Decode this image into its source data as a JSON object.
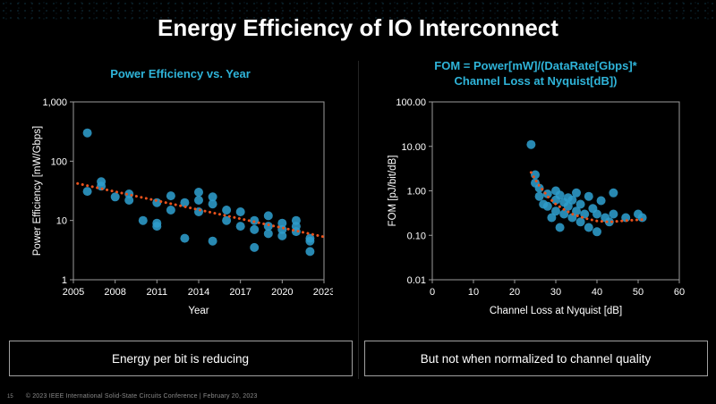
{
  "slide": {
    "title": "Energy Efficiency of IO Interconnect",
    "captions": {
      "left": "Energy per bit is reducing",
      "right": "But not when normalized to channel quality"
    },
    "footer": {
      "page": "15",
      "text": "© 2023 IEEE International Solid-State Circuits Conference  |  February 20, 2023"
    }
  },
  "colors": {
    "background": "#000000",
    "title_text": "#FFFFFF",
    "chart_title": "#2FB4D9",
    "point": "#2D9CCB",
    "trend": "#E8521C",
    "axis": "#9B9B9B",
    "tick_text": "#FFFFFF",
    "caption_border": "#A0A0A0",
    "footer_text": "#8A8A8A"
  },
  "chart_data": [
    {
      "id": "power-efficiency-vs-year",
      "type": "scatter",
      "title": "Power Efficiency vs. Year",
      "xlabel": "Year",
      "ylabel": "Power Efficiency [mW/Gbps]",
      "xlim": [
        2005,
        2023
      ],
      "x_ticks": [
        2005,
        2008,
        2011,
        2014,
        2017,
        2020,
        2023
      ],
      "yscale": "log",
      "ylim": [
        1,
        1000
      ],
      "y_ticks": [
        {
          "v": 1,
          "label": "1"
        },
        {
          "v": 10,
          "label": "10"
        },
        {
          "v": 100,
          "label": "100"
        },
        {
          "v": 1000,
          "label": "1,000"
        }
      ],
      "grid": false,
      "legend": "none",
      "points": [
        [
          2006,
          300
        ],
        [
          2006,
          31
        ],
        [
          2007,
          45
        ],
        [
          2007,
          38
        ],
        [
          2008,
          25
        ],
        [
          2009,
          28
        ],
        [
          2009,
          22
        ],
        [
          2010,
          10
        ],
        [
          2011,
          20
        ],
        [
          2011,
          9
        ],
        [
          2011,
          8
        ],
        [
          2012,
          26
        ],
        [
          2012,
          15
        ],
        [
          2013,
          20
        ],
        [
          2013,
          5
        ],
        [
          2014,
          30
        ],
        [
          2014,
          22
        ],
        [
          2014,
          14
        ],
        [
          2015,
          25
        ],
        [
          2015,
          19
        ],
        [
          2015,
          4.5
        ],
        [
          2016,
          15
        ],
        [
          2016,
          10
        ],
        [
          2017,
          14
        ],
        [
          2017,
          8
        ],
        [
          2018,
          10
        ],
        [
          2018,
          7
        ],
        [
          2018,
          3.5
        ],
        [
          2019,
          12
        ],
        [
          2019,
          8
        ],
        [
          2019,
          6
        ],
        [
          2020,
          9
        ],
        [
          2020,
          7
        ],
        [
          2020,
          5.5
        ],
        [
          2021,
          10
        ],
        [
          2021,
          8
        ],
        [
          2021,
          6.5
        ],
        [
          2022,
          5
        ],
        [
          2022,
          4.5
        ],
        [
          2022,
          3
        ]
      ],
      "trend": [
        [
          2005.3,
          42
        ],
        [
          2023,
          5.3
        ]
      ]
    },
    {
      "id": "fom-vs-channel-loss",
      "type": "scatter",
      "title": "FOM = Power[mW]/(DataRate[Gbps]*\nChannel Loss at Nyquist[dB])",
      "xlabel": "Channel Loss at Nyquist [dB]",
      "ylabel": "FOM [pJ/bit/dB]",
      "xlim": [
        0,
        60
      ],
      "x_ticks": [
        0,
        10,
        20,
        30,
        40,
        50,
        60
      ],
      "yscale": "log",
      "ylim": [
        0.01,
        100
      ],
      "y_ticks": [
        {
          "v": 0.01,
          "label": "0.01"
        },
        {
          "v": 0.1,
          "label": "0.10"
        },
        {
          "v": 1,
          "label": "1.00"
        },
        {
          "v": 10,
          "label": "10.00"
        },
        {
          "v": 100,
          "label": "100.00"
        }
      ],
      "grid": false,
      "legend": "none",
      "points": [
        [
          24,
          11
        ],
        [
          25,
          2.3
        ],
        [
          25,
          1.5
        ],
        [
          26,
          1.15
        ],
        [
          26,
          0.75
        ],
        [
          27,
          0.5
        ],
        [
          28,
          0.85
        ],
        [
          28,
          0.45
        ],
        [
          29,
          0.25
        ],
        [
          30,
          1.0
        ],
        [
          30,
          0.62
        ],
        [
          30,
          0.35
        ],
        [
          31,
          0.8
        ],
        [
          31,
          0.15
        ],
        [
          32,
          0.55
        ],
        [
          32,
          0.3
        ],
        [
          33,
          0.7
        ],
        [
          33,
          0.45
        ],
        [
          34,
          0.62
        ],
        [
          34,
          0.25
        ],
        [
          35,
          0.9
        ],
        [
          35,
          0.35
        ],
        [
          36,
          0.5
        ],
        [
          36,
          0.2
        ],
        [
          37,
          0.3
        ],
        [
          38,
          0.75
        ],
        [
          38,
          0.15
        ],
        [
          39,
          0.4
        ],
        [
          40,
          0.3
        ],
        [
          40,
          0.12
        ],
        [
          41,
          0.6
        ],
        [
          42,
          0.25
        ],
        [
          43,
          0.2
        ],
        [
          44,
          0.9
        ],
        [
          44,
          0.3
        ],
        [
          47,
          0.25
        ],
        [
          50,
          0.3
        ],
        [
          51,
          0.25
        ]
      ],
      "trend": [
        [
          24,
          2.6
        ],
        [
          25,
          1.8
        ],
        [
          26,
          1.3
        ],
        [
          27,
          1.0
        ],
        [
          28,
          0.75
        ],
        [
          30,
          0.5
        ],
        [
          32,
          0.38
        ],
        [
          34,
          0.3
        ],
        [
          36,
          0.26
        ],
        [
          38,
          0.23
        ],
        [
          40,
          0.21
        ],
        [
          43,
          0.2
        ],
        [
          46,
          0.21
        ],
        [
          49,
          0.22
        ],
        [
          52,
          0.23
        ]
      ]
    }
  ]
}
